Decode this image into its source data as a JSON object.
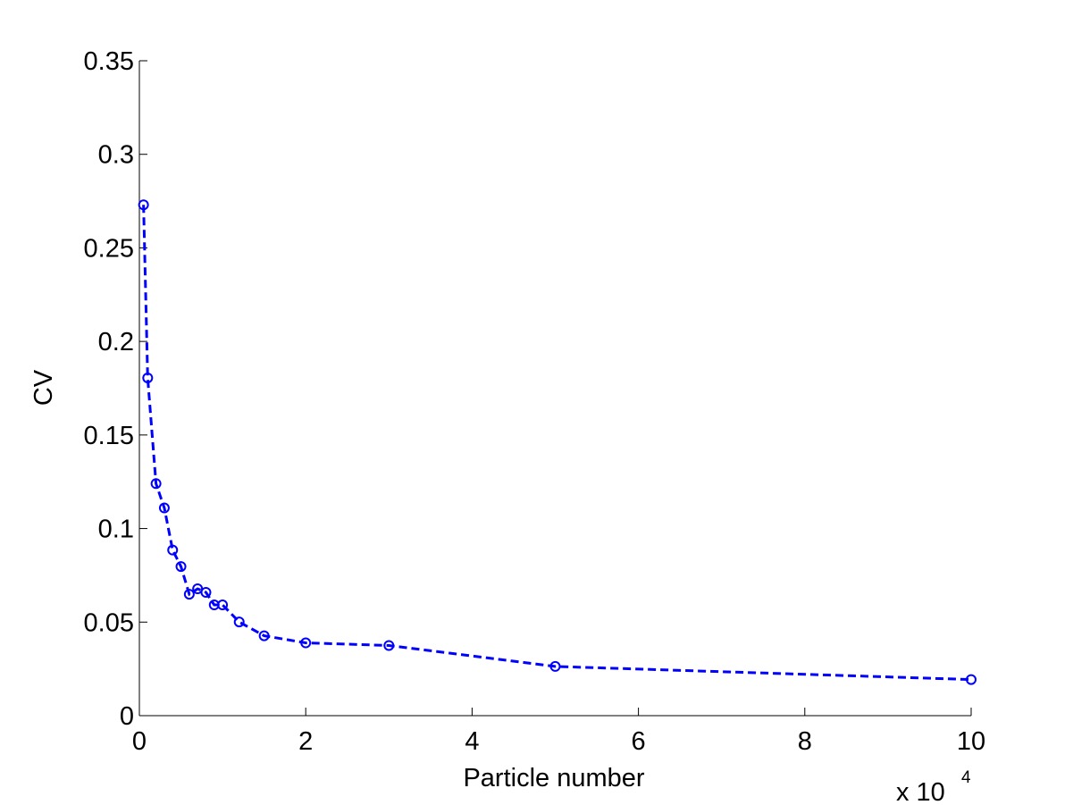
{
  "chart_data": {
    "type": "line",
    "xlabel": "Particle number",
    "ylabel": "CV",
    "x_exponent": {
      "base": "x 10",
      "power": "4"
    },
    "x": [
      0.05,
      0.1,
      0.2,
      0.3,
      0.4,
      0.5,
      0.6,
      0.7,
      0.8,
      0.9,
      1.0,
      1.2,
      1.5,
      2,
      3,
      5,
      10
    ],
    "series": [
      {
        "color": "#0000ff",
        "line_style": "dashed",
        "marker": "circle",
        "values": [
          0.273,
          0.1805,
          0.124,
          0.111,
          0.0885,
          0.0797,
          0.0649,
          0.0678,
          0.0659,
          0.0592,
          0.0592,
          0.0501,
          0.0427,
          0.0389,
          0.0375,
          0.0263,
          0.0193
        ]
      }
    ],
    "xlim": [
      0,
      10
    ],
    "xticks": [
      0,
      2,
      4,
      6,
      8,
      10
    ],
    "ylim": [
      0,
      0.35
    ],
    "yticks": [
      0,
      0.05,
      0.1,
      0.15,
      0.2,
      0.25,
      0.3,
      0.35
    ],
    "grid": false
  }
}
